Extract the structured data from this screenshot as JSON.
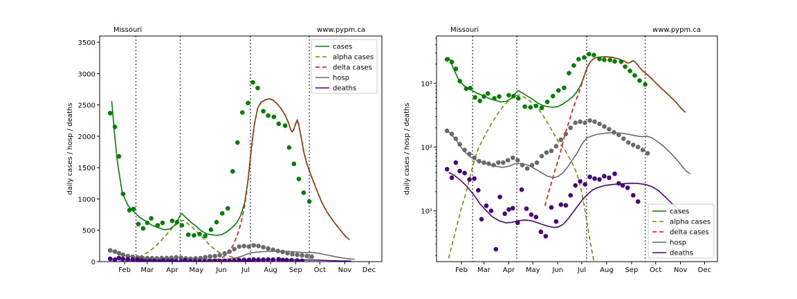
{
  "chart_data": [
    {
      "type": "line",
      "yscale": "linear",
      "header_left": "Missouri",
      "header_right": "www.pypm.ca",
      "ylabel": "daily cases / hosp / deaths",
      "xlim": [
        0,
        350
      ],
      "ylim": [
        0,
        3600
      ],
      "yticks": [
        0,
        500,
        1000,
        1500,
        2000,
        2500,
        3000,
        3500
      ],
      "xticks": [
        {
          "label": "Feb",
          "x": 31
        },
        {
          "label": "Mar",
          "x": 59
        },
        {
          "label": "Apr",
          "x": 90
        },
        {
          "label": "May",
          "x": 120
        },
        {
          "label": "Jun",
          "x": 151
        },
        {
          "label": "Jul",
          "x": 181
        },
        {
          "label": "Aug",
          "x": 212
        },
        {
          "label": "Sep",
          "x": 243
        },
        {
          "label": "Oct",
          "x": 273
        },
        {
          "label": "Nov",
          "x": 304
        },
        {
          "label": "Dec",
          "x": 334
        }
      ],
      "vlines": [
        45,
        100,
        187,
        260
      ],
      "legend": {
        "position": "top-right",
        "entries": [
          "cases",
          "alpha cases",
          "delta cases",
          "hosp",
          "deaths"
        ]
      }
    },
    {
      "type": "line",
      "yscale": "log",
      "header_left": "Missouri",
      "header_right": "www.pypm.ca",
      "ylabel": "daily cases / hosp / deaths",
      "xlim": [
        0,
        350
      ],
      "ylim": [
        1.6,
        5500
      ],
      "yticks": [
        {
          "label": "10¹",
          "v": 10
        },
        {
          "label": "10²",
          "v": 100
        },
        {
          "label": "10³",
          "v": 1000
        }
      ],
      "xticks": [
        {
          "label": "Feb",
          "x": 31
        },
        {
          "label": "Mar",
          "x": 59
        },
        {
          "label": "Apr",
          "x": 90
        },
        {
          "label": "May",
          "x": 120
        },
        {
          "label": "Jun",
          "x": 151
        },
        {
          "label": "Jul",
          "x": 181
        },
        {
          "label": "Aug",
          "x": 212
        },
        {
          "label": "Sep",
          "x": 243
        },
        {
          "label": "Oct",
          "x": 273
        },
        {
          "label": "Nov",
          "x": 304
        },
        {
          "label": "Dec",
          "x": 334
        }
      ],
      "vlines": [
        45,
        100,
        187,
        260
      ],
      "legend": {
        "position": "bottom-right",
        "entries": [
          "cases",
          "alpha cases",
          "delta cases",
          "hosp",
          "deaths"
        ]
      }
    }
  ],
  "series_style": {
    "cases": {
      "color": "#008000",
      "dash": ""
    },
    "alpha cases": {
      "color": "#808000",
      "dash": "6,4"
    },
    "delta cases": {
      "color": "#ff0000",
      "dash": "6,4"
    },
    "hosp": {
      "color": "#696969",
      "dash": ""
    },
    "deaths": {
      "color": "#4b0082",
      "dash": ""
    }
  },
  "series_lines": {
    "cases": [
      [
        15,
        2560
      ],
      [
        18,
        2100
      ],
      [
        22,
        1600
      ],
      [
        28,
        1100
      ],
      [
        35,
        900
      ],
      [
        42,
        800
      ],
      [
        50,
        700
      ],
      [
        58,
        640
      ],
      [
        65,
        580
      ],
      [
        73,
        540
      ],
      [
        80,
        510
      ],
      [
        87,
        520
      ],
      [
        93,
        580
      ],
      [
        97,
        660
      ],
      [
        100,
        740
      ],
      [
        102,
        770
      ],
      [
        104,
        740
      ],
      [
        108,
        690
      ],
      [
        114,
        620
      ],
      [
        120,
        560
      ],
      [
        126,
        490
      ],
      [
        132,
        450
      ],
      [
        138,
        430
      ],
      [
        145,
        420
      ],
      [
        151,
        430
      ],
      [
        157,
        470
      ],
      [
        163,
        530
      ],
      [
        170,
        620
      ],
      [
        175,
        740
      ],
      [
        180,
        950
      ],
      [
        184,
        1300
      ],
      [
        188,
        1800
      ],
      [
        192,
        2200
      ],
      [
        196,
        2450
      ],
      [
        200,
        2540
      ],
      [
        205,
        2580
      ],
      [
        210,
        2600
      ],
      [
        215,
        2580
      ],
      [
        220,
        2520
      ],
      [
        225,
        2440
      ],
      [
        230,
        2340
      ],
      [
        234,
        2220
      ],
      [
        237,
        2100
      ],
      [
        239,
        2070
      ],
      [
        241,
        2120
      ],
      [
        243,
        2200
      ],
      [
        245,
        2260
      ],
      [
        247,
        2180
      ],
      [
        250,
        1980
      ],
      [
        253,
        1760
      ],
      [
        257,
        1560
      ],
      [
        262,
        1380
      ],
      [
        268,
        1180
      ],
      [
        275,
        960
      ],
      [
        282,
        790
      ],
      [
        290,
        640
      ],
      [
        298,
        510
      ],
      [
        305,
        400
      ],
      [
        310,
        350
      ]
    ],
    "alpha cases": [
      [
        15,
        1.8
      ],
      [
        22,
        4
      ],
      [
        30,
        10
      ],
      [
        38,
        22
      ],
      [
        45,
        50
      ],
      [
        52,
        95
      ],
      [
        60,
        150
      ],
      [
        68,
        230
      ],
      [
        76,
        330
      ],
      [
        84,
        450
      ],
      [
        92,
        560
      ],
      [
        100,
        640
      ],
      [
        104,
        660
      ],
      [
        108,
        620
      ],
      [
        114,
        560
      ],
      [
        120,
        480
      ],
      [
        128,
        380
      ],
      [
        136,
        270
      ],
      [
        144,
        180
      ],
      [
        152,
        120
      ],
      [
        160,
        90
      ],
      [
        168,
        60
      ],
      [
        175,
        38
      ],
      [
        180,
        22
      ],
      [
        184,
        12
      ],
      [
        188,
        6
      ],
      [
        192,
        3
      ],
      [
        196,
        1.6
      ],
      [
        200,
        1
      ]
    ],
    "delta cases": [
      [
        135,
        12
      ],
      [
        142,
        25
      ],
      [
        148,
        45
      ],
      [
        152,
        65
      ],
      [
        156,
        100
      ],
      [
        160,
        160
      ],
      [
        165,
        250
      ],
      [
        170,
        400
      ],
      [
        175,
        600
      ],
      [
        180,
        900
      ],
      [
        184,
        1300
      ],
      [
        188,
        1800
      ],
      [
        192,
        2200
      ],
      [
        196,
        2450
      ],
      [
        200,
        2540
      ],
      [
        205,
        2580
      ],
      [
        210,
        2600
      ],
      [
        215,
        2580
      ],
      [
        220,
        2520
      ],
      [
        225,
        2440
      ],
      [
        230,
        2340
      ],
      [
        234,
        2220
      ],
      [
        237,
        2100
      ],
      [
        239,
        2070
      ],
      [
        241,
        2120
      ],
      [
        243,
        2200
      ],
      [
        245,
        2260
      ],
      [
        247,
        2180
      ],
      [
        250,
        1980
      ],
      [
        253,
        1760
      ],
      [
        257,
        1560
      ],
      [
        262,
        1380
      ],
      [
        268,
        1180
      ],
      [
        275,
        960
      ],
      [
        282,
        790
      ],
      [
        290,
        640
      ],
      [
        298,
        510
      ],
      [
        305,
        400
      ],
      [
        310,
        350
      ]
    ],
    "hosp": [
      [
        15,
        175
      ],
      [
        20,
        150
      ],
      [
        25,
        125
      ],
      [
        30,
        100
      ],
      [
        36,
        82
      ],
      [
        42,
        70
      ],
      [
        50,
        62
      ],
      [
        58,
        57
      ],
      [
        66,
        53
      ],
      [
        74,
        50
      ],
      [
        82,
        48
      ],
      [
        90,
        50
      ],
      [
        98,
        55
      ],
      [
        106,
        55
      ],
      [
        114,
        52
      ],
      [
        122,
        46
      ],
      [
        130,
        40
      ],
      [
        138,
        35
      ],
      [
        146,
        33
      ],
      [
        152,
        35
      ],
      [
        158,
        40
      ],
      [
        164,
        50
      ],
      [
        170,
        65
      ],
      [
        175,
        80
      ],
      [
        180,
        105
      ],
      [
        184,
        125
      ],
      [
        188,
        140
      ],
      [
        194,
        150
      ],
      [
        200,
        158
      ],
      [
        210,
        165
      ],
      [
        220,
        168
      ],
      [
        230,
        165
      ],
      [
        240,
        158
      ],
      [
        248,
        150
      ],
      [
        256,
        145
      ],
      [
        262,
        148
      ],
      [
        268,
        140
      ],
      [
        276,
        120
      ],
      [
        284,
        100
      ],
      [
        292,
        80
      ],
      [
        300,
        62
      ],
      [
        306,
        50
      ],
      [
        311,
        42
      ],
      [
        316,
        38
      ]
    ],
    "deaths": [
      [
        15,
        40
      ],
      [
        22,
        36
      ],
      [
        30,
        30
      ],
      [
        38,
        24
      ],
      [
        46,
        18
      ],
      [
        54,
        13
      ],
      [
        62,
        10
      ],
      [
        70,
        8
      ],
      [
        78,
        7
      ],
      [
        86,
        6.5
      ],
      [
        94,
        6.6
      ],
      [
        102,
        7
      ],
      [
        110,
        7.2
      ],
      [
        118,
        7
      ],
      [
        126,
        6.5
      ],
      [
        134,
        6
      ],
      [
        140,
        5.7
      ],
      [
        146,
        5.5
      ],
      [
        152,
        5.6
      ],
      [
        158,
        6.2
      ],
      [
        164,
        7.5
      ],
      [
        170,
        9.5
      ],
      [
        176,
        12
      ],
      [
        182,
        15
      ],
      [
        188,
        18
      ],
      [
        194,
        21
      ],
      [
        200,
        23
      ],
      [
        210,
        25
      ],
      [
        220,
        26
      ],
      [
        230,
        26.5
      ],
      [
        240,
        27
      ],
      [
        250,
        27
      ],
      [
        260,
        26
      ],
      [
        268,
        24
      ],
      [
        276,
        21
      ],
      [
        284,
        17
      ],
      [
        292,
        13.5
      ],
      [
        300,
        11
      ],
      [
        306,
        9.5
      ],
      [
        312,
        8.5
      ]
    ]
  },
  "series_points": {
    "cases": [
      [
        13,
        2370
      ],
      [
        19,
        2150
      ],
      [
        24,
        1680
      ],
      [
        29,
        1080
      ],
      [
        37,
        820
      ],
      [
        42,
        840
      ],
      [
        48,
        600
      ],
      [
        54,
        530
      ],
      [
        59,
        620
      ],
      [
        64,
        690
      ],
      [
        72,
        580
      ],
      [
        78,
        620
      ],
      [
        90,
        650
      ],
      [
        96,
        630
      ],
      [
        102,
        580
      ],
      [
        110,
        430
      ],
      [
        117,
        420
      ],
      [
        124,
        440
      ],
      [
        131,
        410
      ],
      [
        138,
        510
      ],
      [
        145,
        630
      ],
      [
        152,
        770
      ],
      [
        159,
        850
      ],
      [
        165,
        1440
      ],
      [
        171,
        1900
      ],
      [
        177,
        2380
      ],
      [
        184,
        2530
      ],
      [
        190,
        2860
      ],
      [
        196,
        2770
      ],
      [
        203,
        2400
      ],
      [
        209,
        2330
      ],
      [
        216,
        2310
      ],
      [
        222,
        2200
      ],
      [
        230,
        2170
      ],
      [
        235,
        1820
      ],
      [
        241,
        1560
      ],
      [
        247,
        1320
      ],
      [
        253,
        1100
      ],
      [
        260,
        960
      ]
    ],
    "hosp": [
      [
        13,
        180
      ],
      [
        19,
        160
      ],
      [
        24,
        135
      ],
      [
        29,
        110
      ],
      [
        35,
        90
      ],
      [
        41,
        78
      ],
      [
        47,
        68
      ],
      [
        53,
        60
      ],
      [
        59,
        57
      ],
      [
        65,
        55
      ],
      [
        71,
        52
      ],
      [
        77,
        57
      ],
      [
        83,
        57
      ],
      [
        89,
        62
      ],
      [
        95,
        68
      ],
      [
        101,
        62
      ],
      [
        107,
        52
      ],
      [
        113,
        46
      ],
      [
        119,
        52
      ],
      [
        125,
        57
      ],
      [
        131,
        72
      ],
      [
        137,
        82
      ],
      [
        143,
        87
      ],
      [
        149,
        103
      ],
      [
        155,
        130
      ],
      [
        161,
        160
      ],
      [
        167,
        200
      ],
      [
        173,
        240
      ],
      [
        179,
        250
      ],
      [
        185,
        240
      ],
      [
        191,
        260
      ],
      [
        197,
        250
      ],
      [
        203,
        230
      ],
      [
        209,
        210
      ],
      [
        215,
        190
      ],
      [
        221,
        170
      ],
      [
        227,
        155
      ],
      [
        233,
        135
      ],
      [
        239,
        118
      ],
      [
        245,
        108
      ],
      [
        251,
        100
      ],
      [
        257,
        90
      ],
      [
        263,
        80
      ]
    ],
    "deaths": [
      [
        13,
        45
      ],
      [
        19,
        33
      ],
      [
        24,
        57
      ],
      [
        29,
        42
      ],
      [
        35,
        39
      ],
      [
        41,
        31
      ],
      [
        47,
        32
      ],
      [
        52,
        21
      ],
      [
        56,
        7.4
      ],
      [
        62,
        12
      ],
      [
        68,
        10
      ],
      [
        74,
        2.5
      ],
      [
        79,
        16.5
      ],
      [
        85,
        9
      ],
      [
        90,
        10.5
      ],
      [
        95,
        11
      ],
      [
        101,
        6.5
      ],
      [
        106,
        21.5
      ],
      [
        112,
        10.8
      ],
      [
        118,
        8.7
      ],
      [
        124,
        8
      ],
      [
        130,
        4.7
      ],
      [
        136,
        4
      ],
      [
        143,
        11.3
      ],
      [
        149,
        6.8
      ],
      [
        155,
        12.5
      ],
      [
        161,
        12.2
      ],
      [
        167,
        17.5
      ],
      [
        173,
        25
      ],
      [
        179,
        29
      ],
      [
        185,
        26
      ],
      [
        191,
        34
      ],
      [
        197,
        32
      ],
      [
        203,
        31
      ],
      [
        209,
        35
      ],
      [
        215,
        33
      ],
      [
        222,
        38
      ],
      [
        227,
        27
      ],
      [
        232,
        25
      ],
      [
        238,
        23
      ],
      [
        245,
        17.5
      ],
      [
        251,
        14
      ]
    ]
  }
}
